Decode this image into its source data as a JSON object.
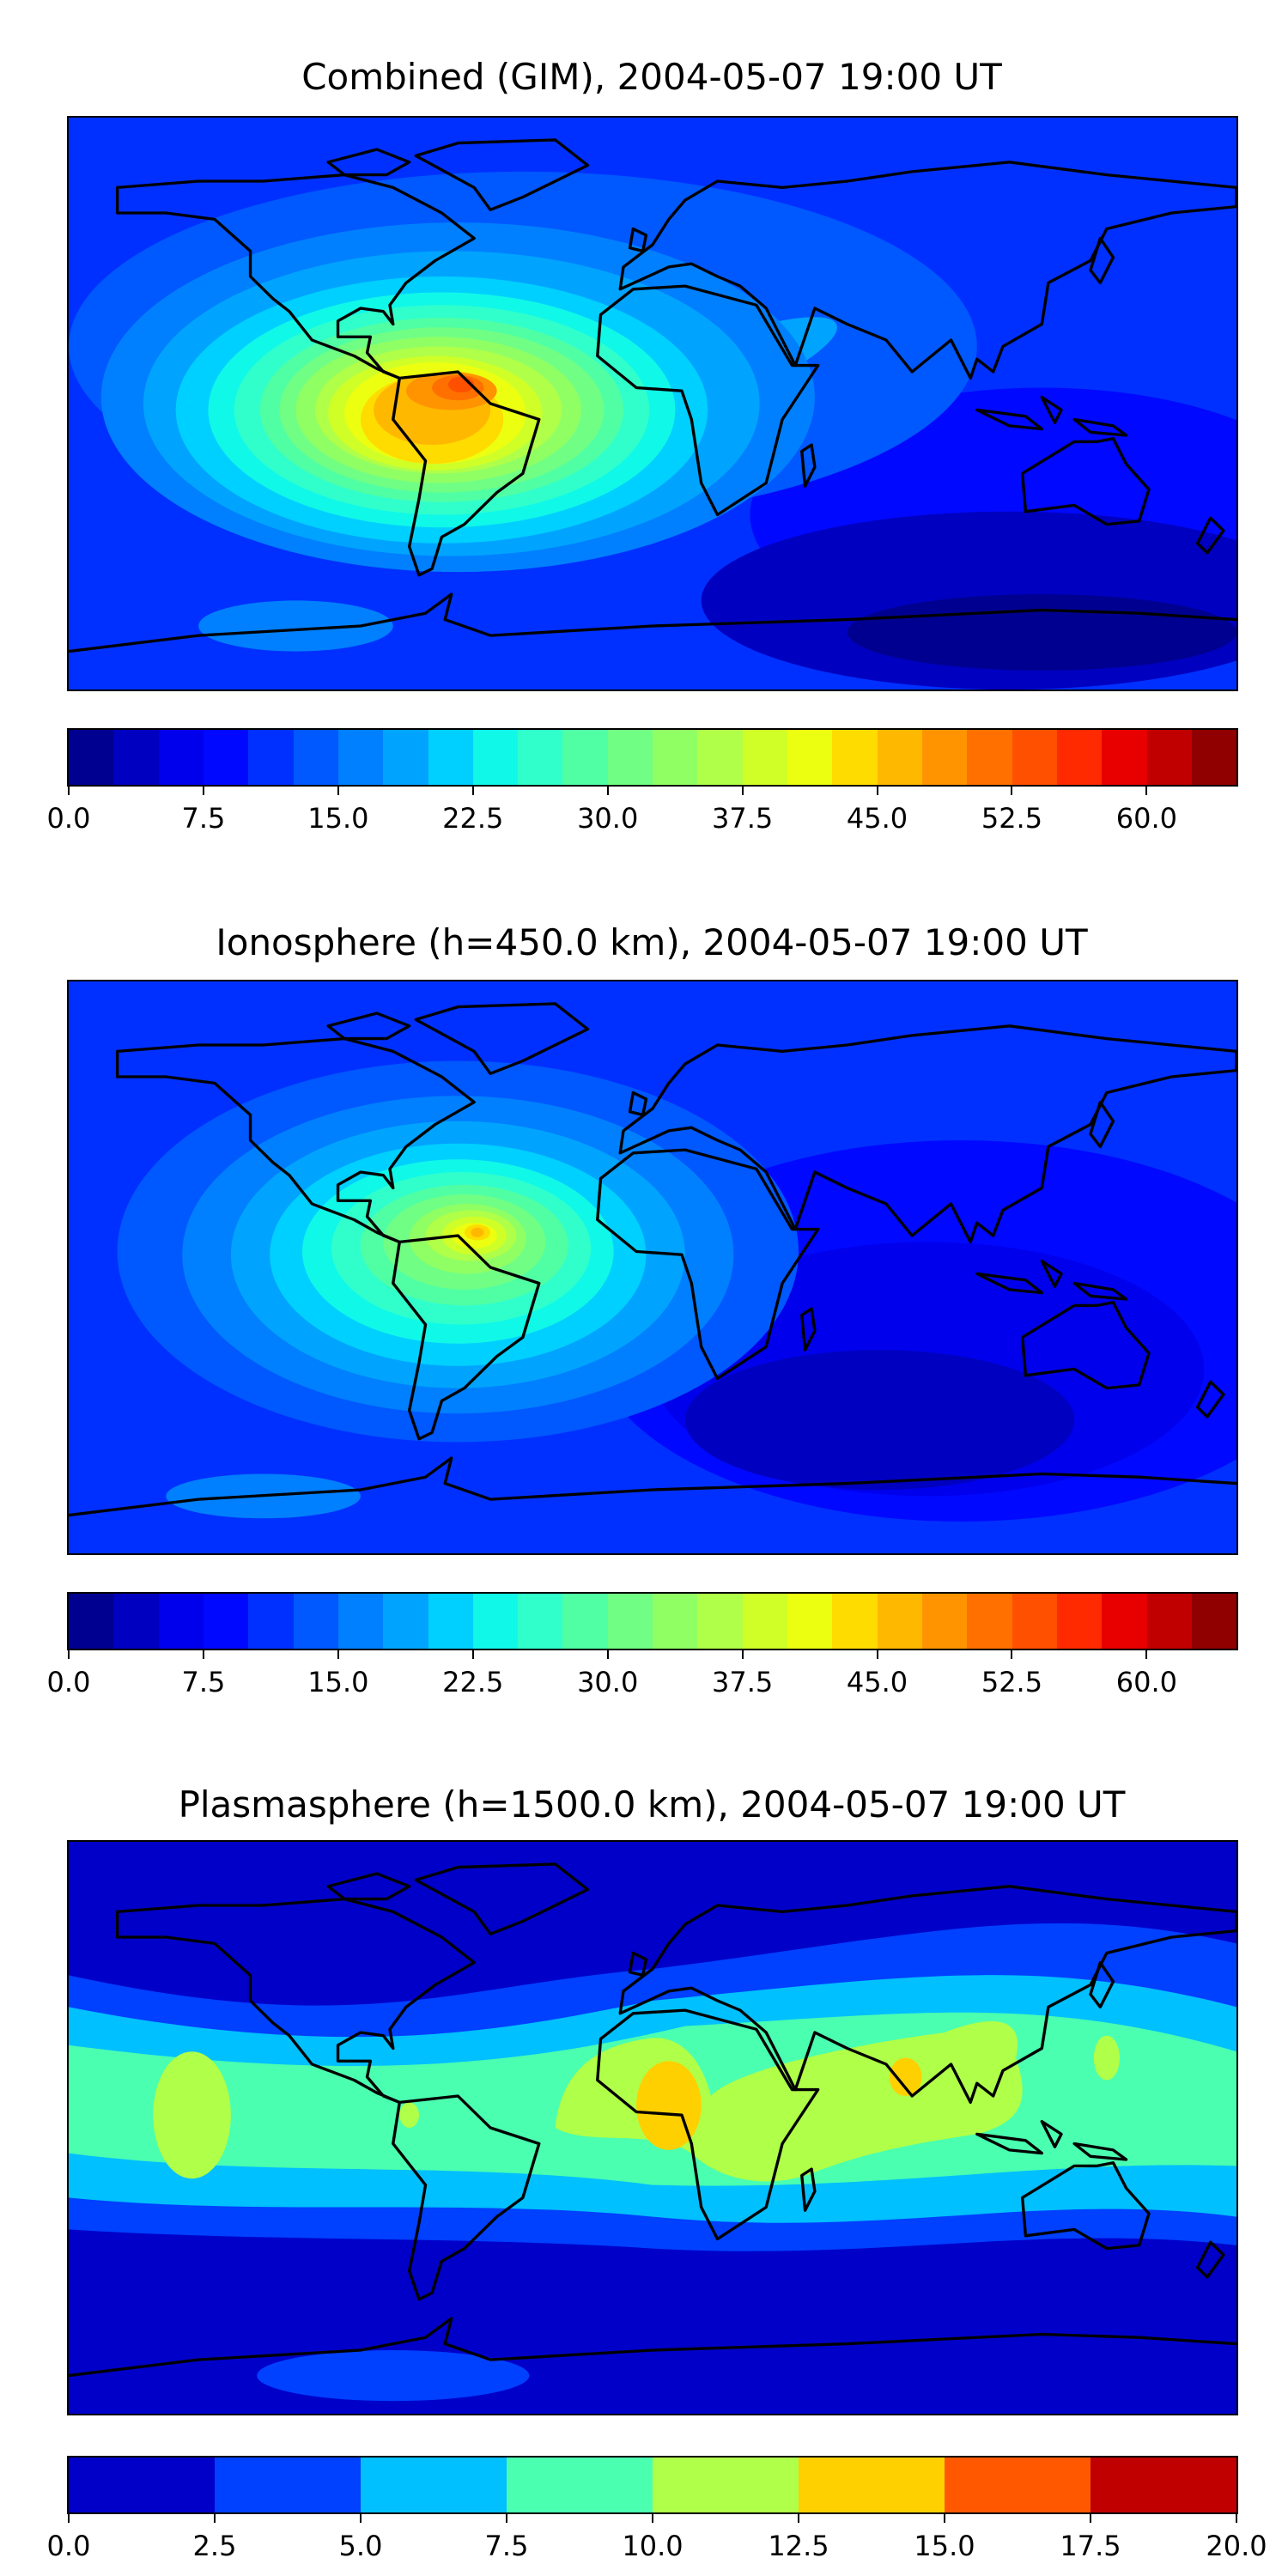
{
  "chart_data": [
    {
      "type": "heatmap",
      "title": "Combined (GIM), 2004-05-07 19:00 UT",
      "map_projection": "plate carree, world",
      "colorbar": {
        "range": [
          0,
          65
        ],
        "level_step": 2.5,
        "tick_labels": [
          "0.0",
          "7.5",
          "15.0",
          "22.5",
          "30.0",
          "37.5",
          "45.0",
          "52.5",
          "60.0"
        ],
        "tick_values": [
          0,
          7.5,
          15,
          22.5,
          30,
          37.5,
          45,
          52.5,
          60
        ],
        "colors": [
          "#000090",
          "#0000c0",
          "#0000ec",
          "#0008ff",
          "#0030ff",
          "#0058ff",
          "#0080ff",
          "#00a4ff",
          "#00d0ff",
          "#10f8e8",
          "#30ffcc",
          "#50ffa4",
          "#70ff84",
          "#90ff64",
          "#b0ff48",
          "#d0ff28",
          "#ecff10",
          "#ffdc00",
          "#ffb800",
          "#ff9400",
          "#ff7000",
          "#ff5000",
          "#ff2a00",
          "#e80000",
          "#c00000",
          "#900000"
        ]
      },
      "features": {
        "max_region": "northern South America",
        "max_value_approx": 55
      }
    },
    {
      "type": "heatmap",
      "title": "Ionosphere  (h=450.0 km), 2004-05-07 19:00 UT",
      "map_projection": "plate carree, world",
      "colorbar": {
        "range": [
          0,
          65
        ],
        "level_step": 2.5,
        "tick_labels": [
          "0.0",
          "7.5",
          "15.0",
          "22.5",
          "30.0",
          "37.5",
          "45.0",
          "52.5",
          "60.0"
        ],
        "tick_values": [
          0,
          7.5,
          15,
          22.5,
          30,
          37.5,
          45,
          52.5,
          60
        ],
        "colors": [
          "#000090",
          "#0000c0",
          "#0000ec",
          "#0008ff",
          "#0030ff",
          "#0058ff",
          "#0080ff",
          "#00a4ff",
          "#00d0ff",
          "#10f8e8",
          "#30ffcc",
          "#50ffa4",
          "#70ff84",
          "#90ff64",
          "#b0ff48",
          "#d0ff28",
          "#ecff10",
          "#ffdc00",
          "#ffb800",
          "#ff9400",
          "#ff7000",
          "#ff5000",
          "#ff2a00",
          "#e80000",
          "#c00000",
          "#900000"
        ]
      },
      "features": {
        "max_region": "northern South America",
        "max_value_approx": 47
      }
    },
    {
      "type": "heatmap",
      "title": "Plasmasphere (h=1500.0 km), 2004-05-07 19:00 UT",
      "map_projection": "plate carree, world",
      "colorbar": {
        "range": [
          0,
          20
        ],
        "level_step": 2.5,
        "tick_labels": [
          "0.0",
          "2.5",
          "5.0",
          "7.5",
          "10.0",
          "12.5",
          "15.0",
          "17.5",
          "20.0"
        ],
        "tick_values": [
          0,
          2.5,
          5,
          7.5,
          10,
          12.5,
          15,
          17.5,
          20
        ],
        "colors": [
          "#0000c8",
          "#0040ff",
          "#00c0ff",
          "#4affb0",
          "#b0ff48",
          "#ffd000",
          "#ff5800",
          "#c00000"
        ]
      },
      "features": {
        "max_region": "west-central Africa",
        "max_value_approx": 14
      }
    }
  ]
}
